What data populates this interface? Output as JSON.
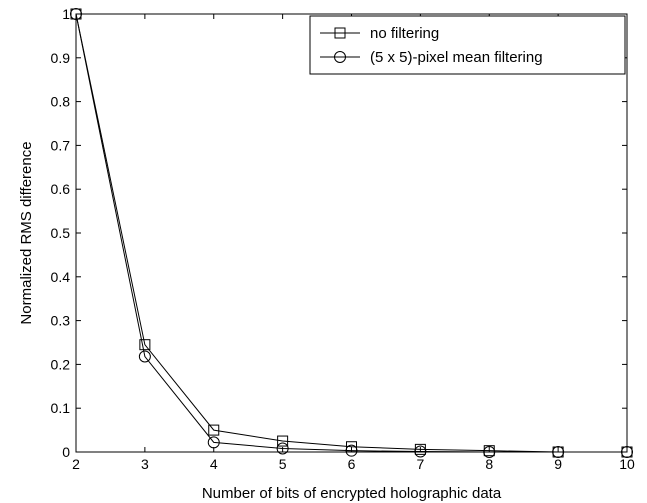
{
  "chart_data": {
    "type": "line",
    "title": "",
    "xlabel": "Number of bits of encrypted holographic data",
    "ylabel": "Normalized RMS difference",
    "xlim": [
      2,
      10
    ],
    "ylim": [
      0,
      1
    ],
    "xticks": [
      2,
      3,
      4,
      5,
      6,
      7,
      8,
      9,
      10
    ],
    "yticks": [
      0,
      0.1,
      0.2,
      0.3,
      0.4,
      0.5,
      0.6,
      0.7,
      0.8,
      0.9,
      1
    ],
    "xtick_labels": [
      "2",
      "3",
      "4",
      "5",
      "6",
      "7",
      "8",
      "9",
      "10"
    ],
    "ytick_labels": [
      "0",
      "0.1",
      "0.2",
      "0.3",
      "0.4",
      "0.5",
      "0.6",
      "0.7",
      "0.8",
      "0.9",
      "1"
    ],
    "grid": false,
    "legend_position": "top-right",
    "series": [
      {
        "name": "no filtering",
        "marker": "square",
        "color": "#000000",
        "x": [
          2,
          3,
          4,
          5,
          6,
          7,
          8,
          9,
          10
        ],
        "y": [
          1.0,
          0.245,
          0.05,
          0.025,
          0.012,
          0.006,
          0.003,
          0.0,
          0.0
        ]
      },
      {
        "name": "(5 x 5)-pixel mean filtering",
        "marker": "circle",
        "color": "#000000",
        "x": [
          2,
          3,
          4,
          5,
          6,
          7,
          8,
          9,
          10
        ],
        "y": [
          1.0,
          0.218,
          0.022,
          0.008,
          0.003,
          0.001,
          0.0,
          0.0,
          0.0
        ]
      }
    ]
  }
}
